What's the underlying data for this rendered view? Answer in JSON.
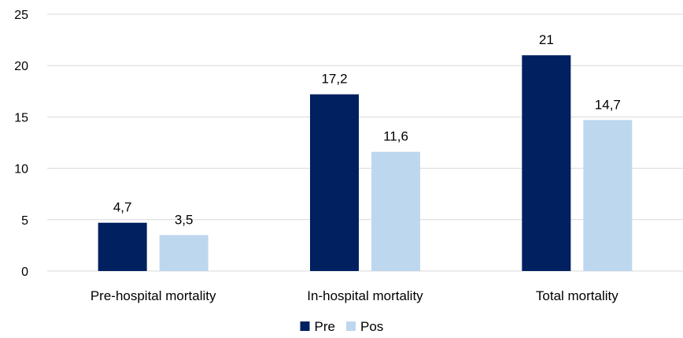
{
  "chart_data": {
    "type": "bar",
    "categories": [
      "Pre-hospital mortality",
      "In-hospital mortality",
      "Total mortality"
    ],
    "series": [
      {
        "name": "Pre",
        "values": [
          4.7,
          17.2,
          21
        ],
        "labels": [
          "4,7",
          "17,2",
          "21"
        ],
        "color": "#002060"
      },
      {
        "name": "Pos",
        "values": [
          3.5,
          11.6,
          14.7
        ],
        "labels": [
          "3,5",
          "11,6",
          "14,7"
        ],
        "color": "#bdd7ee"
      }
    ],
    "ylim": [
      0,
      25
    ],
    "yticks": [
      0,
      5,
      10,
      15,
      20,
      25
    ],
    "grid": true,
    "legend": "bottom-center",
    "title": "",
    "xlabel": "",
    "ylabel": ""
  }
}
